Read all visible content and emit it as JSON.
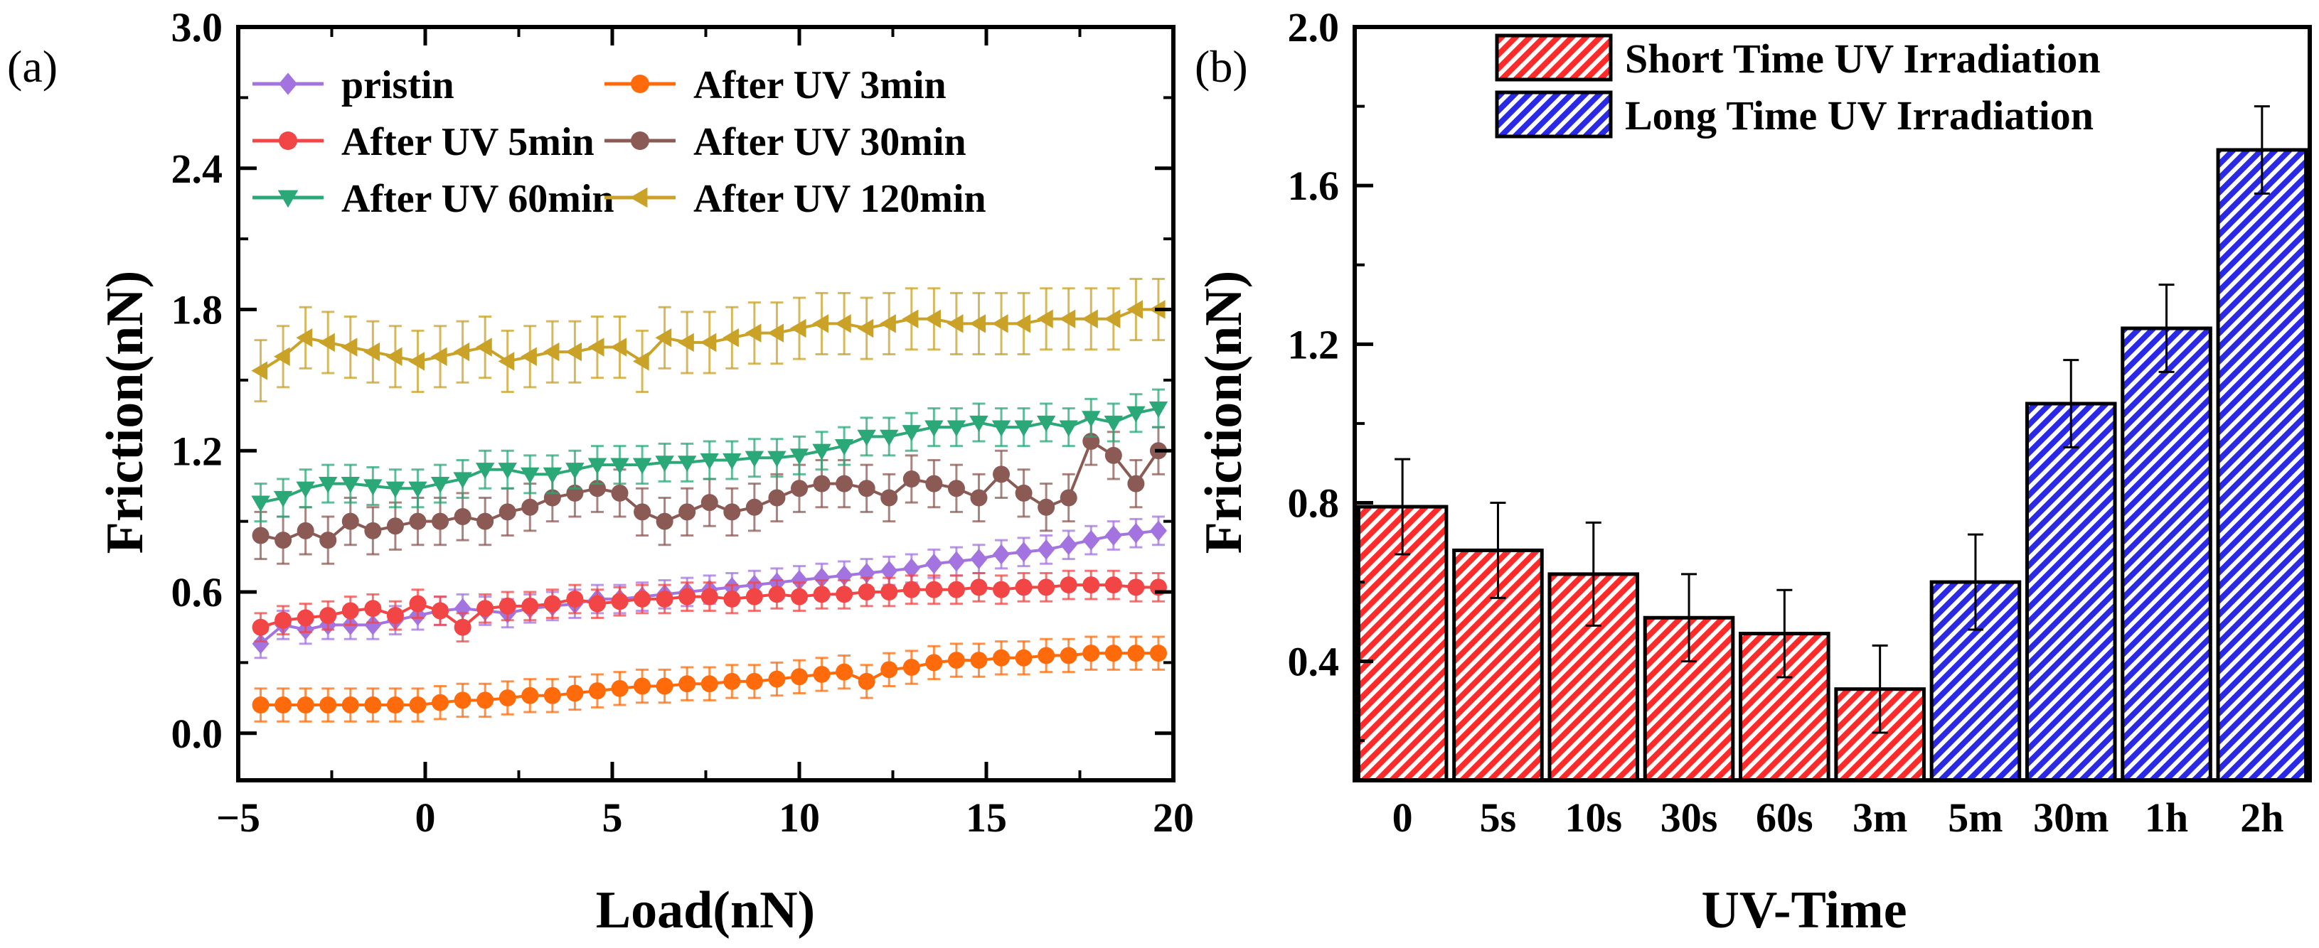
{
  "chart_data": [
    {
      "type": "line",
      "panel_label": "(a)",
      "xlabel": "Load(nN)",
      "ylabel": "Friction(nN)",
      "xlim": [
        -5,
        20
      ],
      "ylim": [
        -0.2,
        3.0
      ],
      "xticks": [
        -5,
        0,
        5,
        10,
        15,
        20
      ],
      "xtick_labels": [
        "−5",
        "0",
        "5",
        "10",
        "15",
        "20"
      ],
      "yticks": [
        0.0,
        0.6,
        1.2,
        1.8,
        2.4,
        3.0
      ],
      "ytick_labels": [
        "0.0",
        "0.6",
        "1.2",
        "1.8",
        "2.4",
        "3.0"
      ],
      "x": [
        -4.4,
        -3.8,
        -3.2,
        -2.6,
        -2.0,
        -1.4,
        -0.8,
        -0.2,
        0.4,
        1.0,
        1.6,
        2.2,
        2.8,
        3.4,
        4.0,
        4.6,
        5.2,
        5.8,
        6.4,
        7.0,
        7.6,
        8.2,
        8.8,
        9.4,
        10.0,
        10.6,
        11.2,
        11.8,
        12.4,
        13.0,
        13.6,
        14.2,
        14.8,
        15.4,
        16.0,
        16.6,
        17.2,
        17.8,
        18.4,
        19.0,
        19.6
      ],
      "series": [
        {
          "name": "pristin",
          "color": "#a374e0",
          "marker": "diamond",
          "err": 0.06,
          "values": [
            0.38,
            0.46,
            0.44,
            0.46,
            0.46,
            0.46,
            0.48,
            0.5,
            0.52,
            0.53,
            0.52,
            0.51,
            0.53,
            0.54,
            0.55,
            0.57,
            0.57,
            0.58,
            0.59,
            0.6,
            0.61,
            0.62,
            0.63,
            0.64,
            0.65,
            0.66,
            0.67,
            0.68,
            0.69,
            0.7,
            0.72,
            0.73,
            0.74,
            0.76,
            0.77,
            0.78,
            0.8,
            0.82,
            0.84,
            0.85,
            0.86
          ]
        },
        {
          "name": "After UV 3min",
          "color": "#ff6b0a",
          "marker": "circle",
          "err": 0.07,
          "values": [
            0.12,
            0.12,
            0.12,
            0.12,
            0.12,
            0.12,
            0.12,
            0.12,
            0.13,
            0.14,
            0.14,
            0.15,
            0.16,
            0.16,
            0.17,
            0.18,
            0.19,
            0.2,
            0.2,
            0.21,
            0.21,
            0.22,
            0.22,
            0.23,
            0.24,
            0.25,
            0.26,
            0.22,
            0.27,
            0.28,
            0.3,
            0.31,
            0.31,
            0.32,
            0.32,
            0.33,
            0.33,
            0.34,
            0.34,
            0.34,
            0.34
          ]
        },
        {
          "name": "After UV 5min",
          "color": "#f24545",
          "marker": "circle",
          "err": 0.06,
          "values": [
            0.45,
            0.48,
            0.49,
            0.5,
            0.52,
            0.53,
            0.5,
            0.55,
            0.52,
            0.45,
            0.53,
            0.54,
            0.54,
            0.55,
            0.57,
            0.55,
            0.56,
            0.57,
            0.57,
            0.58,
            0.58,
            0.57,
            0.58,
            0.59,
            0.58,
            0.59,
            0.59,
            0.6,
            0.6,
            0.61,
            0.61,
            0.61,
            0.62,
            0.61,
            0.62,
            0.62,
            0.63,
            0.63,
            0.63,
            0.62,
            0.62
          ]
        },
        {
          "name": "After UV 30min",
          "color": "#8b5a54",
          "marker": "circle",
          "err": 0.1,
          "values": [
            0.84,
            0.82,
            0.86,
            0.82,
            0.9,
            0.86,
            0.88,
            0.9,
            0.9,
            0.92,
            0.9,
            0.94,
            0.96,
            1.0,
            1.02,
            1.04,
            1.02,
            0.94,
            0.9,
            0.94,
            0.98,
            0.94,
            0.96,
            1.0,
            1.04,
            1.06,
            1.06,
            1.04,
            1.0,
            1.08,
            1.06,
            1.04,
            1.0,
            1.1,
            1.02,
            0.96,
            1.0,
            1.24,
            1.18,
            1.06,
            1.2
          ]
        },
        {
          "name": "After UV 60min",
          "color": "#2aa877",
          "marker": "triangle-down",
          "err": 0.08,
          "values": [
            0.98,
            1.0,
            1.04,
            1.06,
            1.06,
            1.05,
            1.04,
            1.04,
            1.06,
            1.08,
            1.12,
            1.12,
            1.1,
            1.1,
            1.12,
            1.14,
            1.14,
            1.14,
            1.15,
            1.15,
            1.16,
            1.16,
            1.17,
            1.17,
            1.18,
            1.2,
            1.22,
            1.26,
            1.26,
            1.28,
            1.3,
            1.3,
            1.32,
            1.3,
            1.3,
            1.32,
            1.3,
            1.34,
            1.32,
            1.36,
            1.38
          ]
        },
        {
          "name": "After UV 120min",
          "color": "#c9a227",
          "marker": "triangle-left",
          "err": 0.13,
          "values": [
            1.54,
            1.6,
            1.68,
            1.66,
            1.64,
            1.62,
            1.6,
            1.58,
            1.6,
            1.62,
            1.64,
            1.58,
            1.6,
            1.62,
            1.62,
            1.64,
            1.64,
            1.58,
            1.68,
            1.66,
            1.66,
            1.68,
            1.7,
            1.7,
            1.72,
            1.74,
            1.74,
            1.72,
            1.74,
            1.76,
            1.76,
            1.74,
            1.74,
            1.74,
            1.74,
            1.76,
            1.76,
            1.76,
            1.76,
            1.8,
            1.8
          ]
        }
      ]
    },
    {
      "type": "bar",
      "panel_label": "(b)",
      "xlabel": "UV-Time",
      "ylabel": "Friction(nN)",
      "ylim": [
        0.1,
        2.0
      ],
      "yticks": [
        0.4,
        0.8,
        1.2,
        1.6,
        2.0
      ],
      "ytick_labels": [
        "0.4",
        "0.8",
        "1.2",
        "1.6",
        "2.0"
      ],
      "categories": [
        "0",
        "5s",
        "10s",
        "30s",
        "60s",
        "3m",
        "5m",
        "30m",
        "1h",
        "2h"
      ],
      "values": [
        0.79,
        0.68,
        0.62,
        0.51,
        0.47,
        0.33,
        0.6,
        1.05,
        1.24,
        1.69
      ],
      "errors": [
        0.12,
        0.12,
        0.13,
        0.11,
        0.11,
        0.11,
        0.12,
        0.11,
        0.11,
        0.11
      ],
      "groups": [
        "short",
        "short",
        "short",
        "short",
        "short",
        "short",
        "long",
        "long",
        "long",
        "long"
      ],
      "legend": [
        {
          "key": "short",
          "label": "Short Time UV Irradiation",
          "color": "#ff2a2a"
        },
        {
          "key": "long",
          "label": "Long Time UV Irradiation",
          "color": "#2a2ae6"
        }
      ]
    }
  ]
}
